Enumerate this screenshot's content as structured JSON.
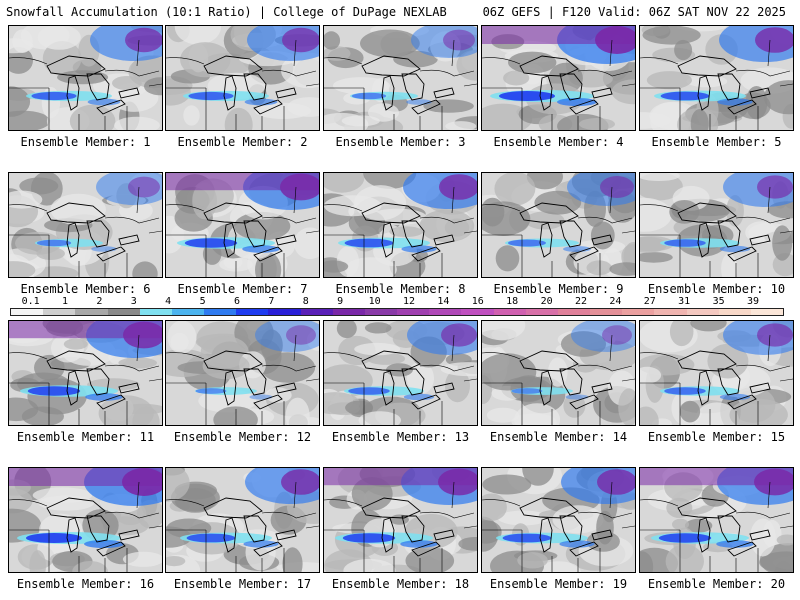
{
  "header": {
    "title": "Snowfall Accumulation (10:1 Ratio) | College of DuPage NEXLAB",
    "run_info": "06Z GEFS | F120 Valid: 06Z SAT NOV 22 2025"
  },
  "members": [
    {
      "label": "Ensemble Member: 1",
      "intensity": 0.7
    },
    {
      "label": "Ensemble Member: 2",
      "intensity": 0.7
    },
    {
      "label": "Ensemble Member: 3",
      "intensity": 0.4
    },
    {
      "label": "Ensemble Member: 4",
      "intensity": 1.0
    },
    {
      "label": "Ensemble Member: 5",
      "intensity": 0.8
    },
    {
      "label": "Ensemble Member: 6",
      "intensity": 0.4
    },
    {
      "label": "Ensemble Member: 7",
      "intensity": 0.9
    },
    {
      "label": "Ensemble Member: 8",
      "intensity": 0.8
    },
    {
      "label": "Ensemble Member: 9",
      "intensity": 0.5
    },
    {
      "label": "Ensemble Member: 10",
      "intensity": 0.6
    },
    {
      "label": "Ensemble Member: 11",
      "intensity": 0.9
    },
    {
      "label": "Ensemble Member: 12",
      "intensity": 0.3
    },
    {
      "label": "Ensemble Member: 13",
      "intensity": 0.6
    },
    {
      "label": "Ensemble Member: 14",
      "intensity": 0.3
    },
    {
      "label": "Ensemble Member: 15",
      "intensity": 0.6
    },
    {
      "label": "Ensemble Member: 16",
      "intensity": 1.0
    },
    {
      "label": "Ensemble Member: 17",
      "intensity": 0.8
    },
    {
      "label": "Ensemble Member: 18",
      "intensity": 0.9
    },
    {
      "label": "Ensemble Member: 19",
      "intensity": 0.8
    },
    {
      "label": "Ensemble Member: 20",
      "intensity": 0.9
    }
  ],
  "colorbar": {
    "ticks": [
      "0.1",
      "1",
      "2",
      "3",
      "4",
      "5",
      "6",
      "7",
      "8",
      "9",
      "10",
      "12",
      "14",
      "16",
      "18",
      "20",
      "22",
      "24",
      "27",
      "31",
      "35",
      "39"
    ],
    "colors": [
      "#f4f4f4",
      "#cfcfcf",
      "#a8a8a8",
      "#8a8a8a",
      "#7fe0f0",
      "#4cb4ef",
      "#2f7bf0",
      "#1f3cf0",
      "#2a1fd8",
      "#5a20b8",
      "#7a28a8",
      "#8a3aa8",
      "#a040b0",
      "#b048b8",
      "#c050c0",
      "#d060b0",
      "#d870a8",
      "#e0809a",
      "#e49098",
      "#eba0a0",
      "#f0b4b0",
      "#f4c8c0",
      "#f8d8c8",
      "#fbe6d8"
    ]
  },
  "palette": {
    "border": "#000000",
    "land_light": "#e8e8e8",
    "land_mid": "#b8b8b8",
    "land_dark": "#8c8c8c",
    "snow_cyan": "#7fe0f0",
    "snow_blue": "#2f7bf0",
    "snow_deep": "#1f3cf0",
    "snow_purple": "#7a28a8"
  }
}
